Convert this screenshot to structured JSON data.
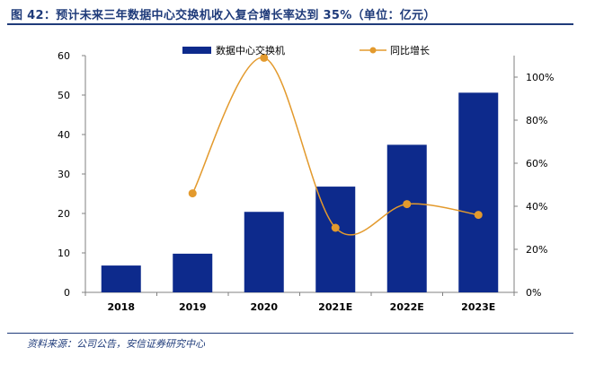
{
  "figure_title": "图 42：预计未来三年数据中心交换机收入复合增长率达到 35%（单位：亿元）",
  "source_note": "资料来源：公司公告，安信证券研究中心",
  "colors": {
    "bar": "#0d2a8c",
    "line": "#e39a2d",
    "title": "#1f3b7a"
  },
  "chart_data": {
    "type": "bar",
    "categories": [
      "2018",
      "2019",
      "2020",
      "2021E",
      "2022E",
      "2023E"
    ],
    "series": [
      {
        "name": "数据中心交换机",
        "type": "bar",
        "axis": "left",
        "values": [
          6.8,
          9.8,
          20.4,
          26.8,
          37.4,
          50.6
        ]
      },
      {
        "name": "同比增长",
        "type": "line",
        "axis": "right",
        "unit": "%",
        "values": [
          null,
          46,
          109,
          30,
          41,
          36
        ]
      }
    ],
    "ylim_left": [
      0,
      60
    ],
    "left_ticks": [
      "0",
      "10",
      "20",
      "30",
      "40",
      "50",
      "60"
    ],
    "ylim_right": [
      0,
      110
    ],
    "right_ticks": [
      "0%",
      "20%",
      "40%",
      "60%",
      "80%",
      "100%"
    ],
    "legend_position": "top-center",
    "grid": false
  }
}
